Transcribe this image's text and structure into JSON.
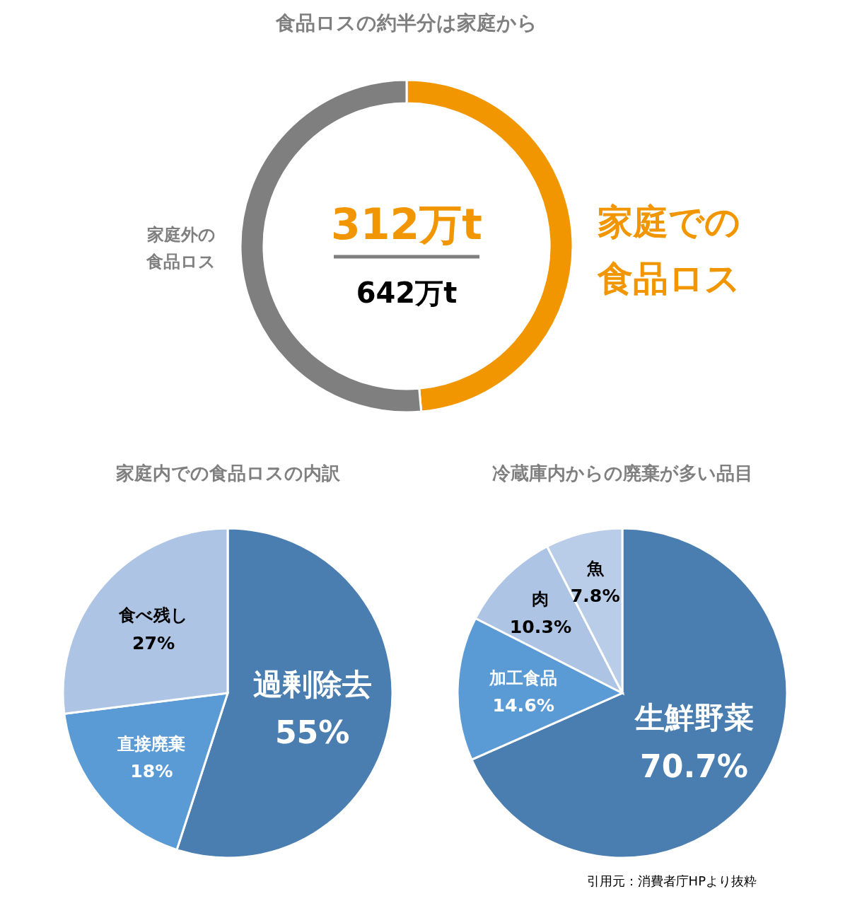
{
  "chart_data": [
    {
      "type": "donut",
      "title": "食品ロスの約半分は家庭から",
      "categories": [
        "家庭での食品ロス",
        "家庭外の食品ロス"
      ],
      "values": [
        48.6,
        51.4
      ],
      "colors": [
        "#f29600",
        "#7f7f7f"
      ],
      "annotations": [
        "312万t",
        "642万t"
      ]
    },
    {
      "type": "pie",
      "title": "家庭内での食品ロスの内訳",
      "categories": [
        "過剰除去",
        "直接廃棄",
        "食べ残し"
      ],
      "values": [
        55,
        18,
        27
      ],
      "colors": [
        "#4a7eb0",
        "#5b9bd5",
        "#adc4e4"
      ],
      "value_labels": [
        "55%",
        "18%",
        "27%"
      ]
    },
    {
      "type": "pie",
      "title": "冷蔵庫内からの廃棄が多い品目",
      "categories": [
        "生鮮野菜",
        "加工食品",
        "肉",
        "魚"
      ],
      "values": [
        70.7,
        14.6,
        10.3,
        7.8
      ],
      "colors": [
        "#4a7eb0",
        "#5b9bd5",
        "#adc4e4",
        "#b9cde8"
      ],
      "value_labels": [
        "70.7%",
        "14.6%",
        "10.3%",
        "7.8%"
      ],
      "annotations": [
        "引用元：消費者庁HPより抜粋"
      ]
    }
  ]
}
